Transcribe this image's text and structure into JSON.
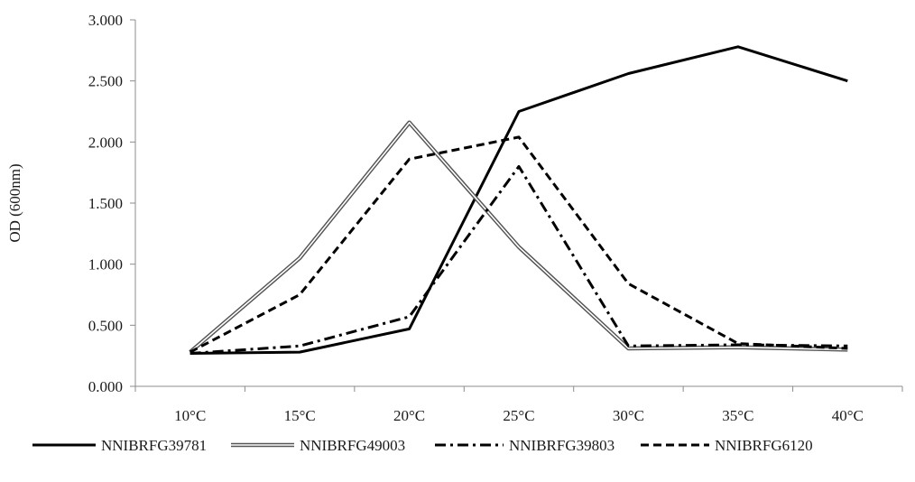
{
  "chart_data": {
    "type": "line",
    "title": "",
    "xlabel": "",
    "ylabel": "OD (600nm)",
    "categories": [
      "10°C",
      "15°C",
      "20°C",
      "25°C",
      "30°C",
      "35°C",
      "40°C"
    ],
    "ylim": [
      0,
      3
    ],
    "yticks": [
      "0.000",
      "0.500",
      "1.000",
      "1.500",
      "2.000",
      "2.500",
      "3.000"
    ],
    "grid": false,
    "legend_position": "bottom",
    "series": [
      {
        "name": "NNIBRFG39781",
        "style": "solid",
        "color": "#000000",
        "values": [
          0.27,
          0.28,
          0.47,
          2.25,
          2.56,
          2.78,
          2.5
        ]
      },
      {
        "name": "NNIBRFG49003",
        "style": "double",
        "color": "#555555",
        "values": [
          0.28,
          1.05,
          2.16,
          1.14,
          0.31,
          0.32,
          0.3
        ]
      },
      {
        "name": "NNIBRFG39803",
        "style": "dashdot",
        "color": "#000000",
        "values": [
          0.27,
          0.33,
          0.57,
          1.8,
          0.33,
          0.34,
          0.33
        ]
      },
      {
        "name": "NNIBRFG6120",
        "style": "dash",
        "color": "#000000",
        "values": [
          0.28,
          0.75,
          1.86,
          2.04,
          0.84,
          0.35,
          0.31
        ]
      }
    ]
  }
}
